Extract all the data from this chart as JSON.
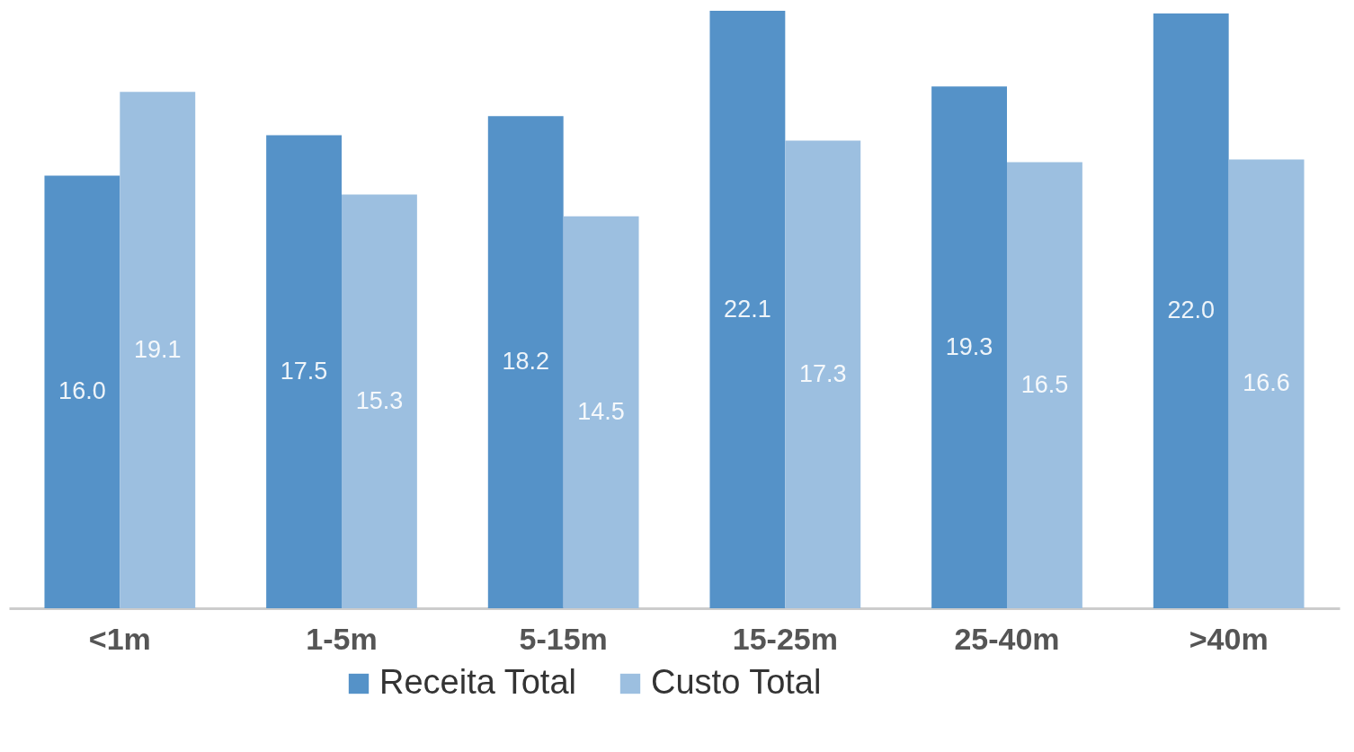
{
  "chart_data": {
    "type": "bar",
    "categories": [
      "<1m",
      "1-5m",
      "5-15m",
      "15-25m",
      "25-40m",
      ">40m"
    ],
    "series": [
      {
        "name": "Receita Total",
        "color": "#5592c8",
        "values": [
          16.0,
          17.5,
          18.2,
          22.1,
          19.3,
          22.0
        ],
        "value_labels": [
          "16.0",
          "17.5",
          "18.2",
          "22.1",
          "19.3",
          "22.0"
        ]
      },
      {
        "name": "Custo Total",
        "color": "#9cbfe0",
        "values": [
          19.1,
          15.3,
          14.5,
          17.3,
          16.5,
          16.6
        ],
        "value_labels": [
          "19.1",
          "15.3",
          "14.5",
          "17.3",
          "16.5",
          "16.6"
        ]
      }
    ],
    "legend": "bottom"
  }
}
